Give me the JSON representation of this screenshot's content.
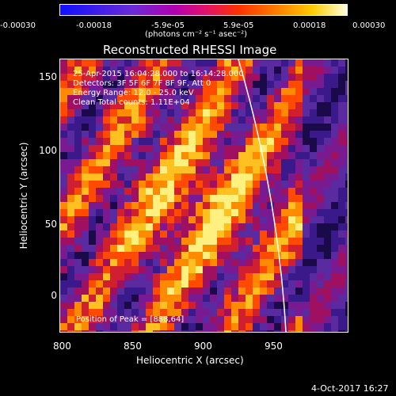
{
  "colorbar": {
    "ticks": [
      "-0.00030",
      "-0.00018",
      "-5.9e-05",
      "5.9e-05",
      "0.00018",
      "0.00030"
    ],
    "units": "(photons cm⁻² s⁻¹ asec⁻²)"
  },
  "title": "Reconstructed RHESSI Image",
  "info": {
    "time": "25-Apr-2015 16:04:28.000 to 16:14:28.000",
    "detectors": "Detectors: 3F 5F 6F 7F 8F 9F, Att 0",
    "energy": "Energy Range: 12.0 - 25.0 keV",
    "method": "Clean    Total counts: 1.11E+04"
  },
  "peak": "Position of Peak = [888,64]",
  "axes": {
    "xlabel": "Heliocentric X (arcsec)",
    "ylabel": "Heliocentric Y (arcsec)",
    "xticks": [
      "800",
      "850",
      "900",
      "950"
    ],
    "yticks": [
      "150",
      "100",
      "50",
      "0"
    ]
  },
  "timestamp": "4-Oct-2017 16:27"
}
